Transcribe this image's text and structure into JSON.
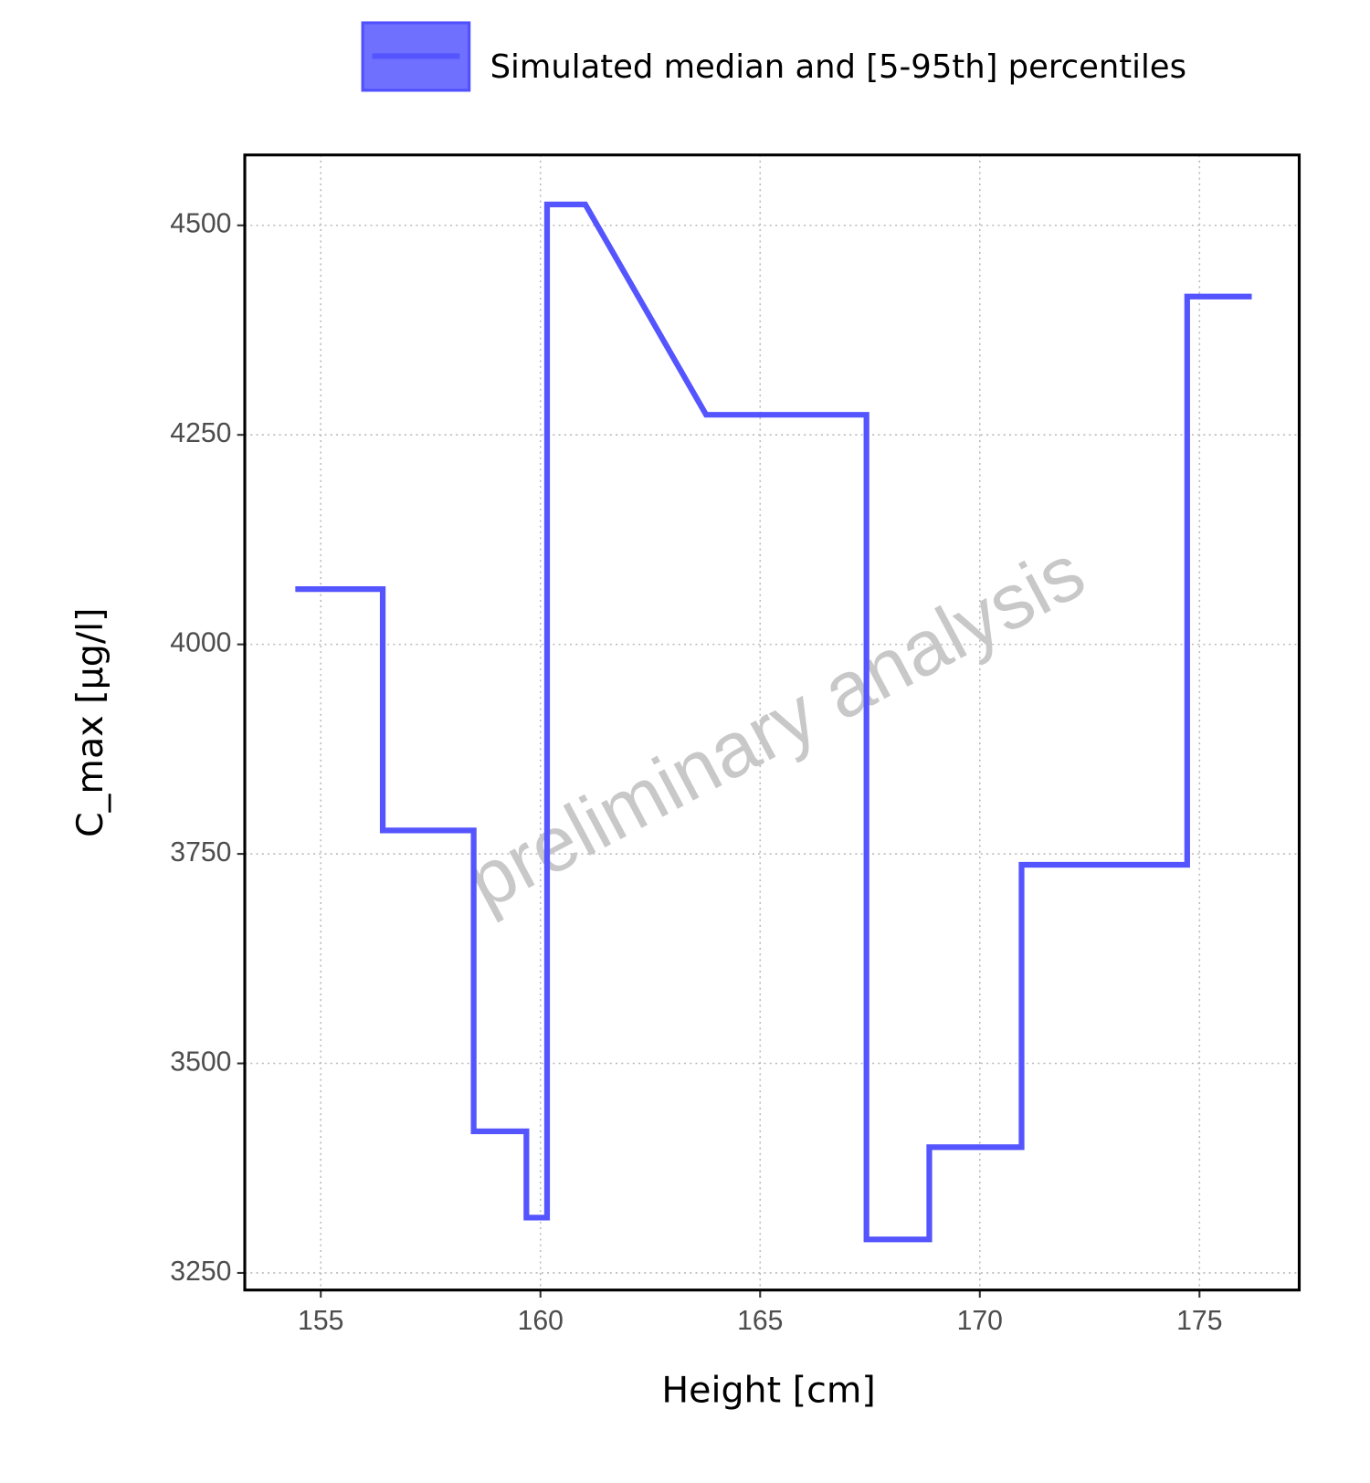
{
  "chart_data": {
    "type": "line",
    "x": [
      154.42,
      156.41,
      156.41,
      158.48,
      158.48,
      159.68,
      159.68,
      160.15,
      160.15,
      161.02,
      163.77,
      167.42,
      167.42,
      168.85,
      168.85,
      170.95,
      170.95,
      174.72,
      174.72,
      176.19
    ],
    "series": [
      {
        "name": "Simulated median and [5-95th] percentiles",
        "color": "#5555ff",
        "values": [
          4066,
          4066,
          3778,
          3778,
          3419,
          3419,
          3316,
          3316,
          4525,
          4525,
          4274,
          4274,
          3290,
          3290,
          3400,
          3400,
          3737,
          3737,
          4415,
          4415
        ]
      }
    ],
    "xlabel": "Height [cm]",
    "ylabel": "C_max [µg/l]",
    "annotation": "preliminary analysis",
    "xlim": [
      153.27,
      177.27
    ],
    "xticks": [
      155,
      160,
      165,
      170,
      175
    ],
    "ylim": [
      3229.6,
      4584
    ],
    "yticks": [
      3250,
      3500,
      3750,
      4000,
      4250,
      4500
    ],
    "grid": true
  }
}
